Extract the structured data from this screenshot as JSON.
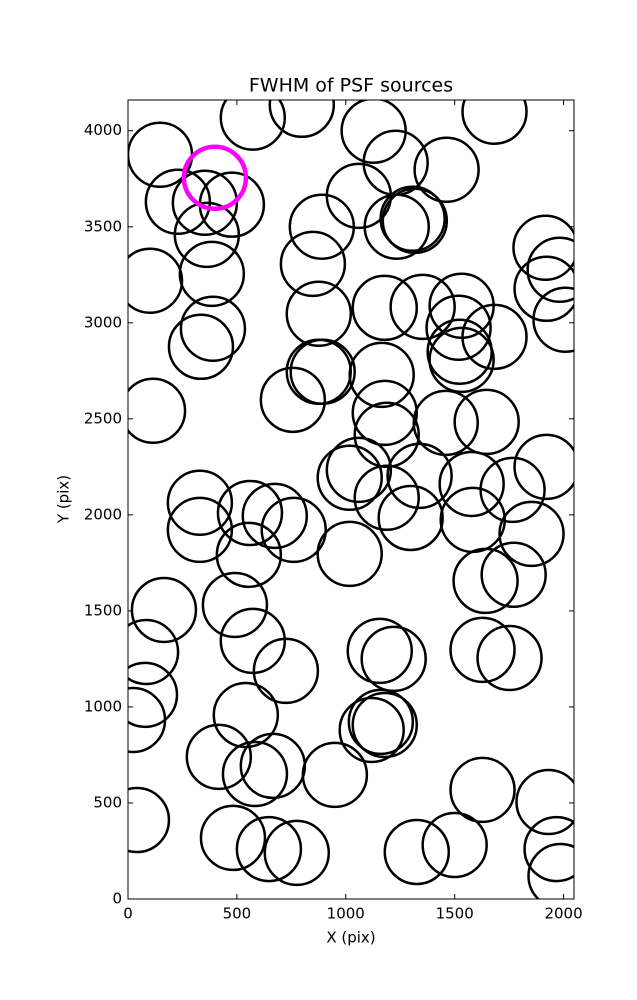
{
  "chart_data": {
    "type": "scatter",
    "title": "FWHM of PSF sources",
    "x_label": "X (pix)",
    "y_label": "Y (pix)",
    "xlim": [
      0,
      2048
    ],
    "ylim": [
      0,
      4160
    ],
    "xticks": [
      0,
      500,
      1000,
      1500,
      2000
    ],
    "yticks": [
      0,
      500,
      1000,
      1500,
      2000,
      2500,
      3000,
      3500,
      4000
    ],
    "color": "#000000",
    "x": [
      147,
      229,
      477,
      353,
      362,
      573,
      798,
      101,
      385,
      390,
      335,
      115,
      890,
      849,
      876,
      894,
      876,
      757,
      1060,
      1128,
      1229,
      1463,
      1683,
      1234,
      1307,
      1317,
      1179,
      1353,
      1532,
      1518,
      1683,
      1532,
      1523,
      1165,
      1179,
      1188,
      1459,
      1647,
      1917,
      1982,
      1922,
      2009,
      1060,
      1018,
      1188,
      1298,
      1339,
      1578,
      1583,
      1766,
      1853,
      1922,
      330,
      330,
      560,
      674,
      761,
      555,
      1018,
      1642,
      1771,
      165,
      491,
      573,
      83,
      725,
      1156,
      1220,
      1628,
      1752,
      78,
      23,
      541,
      417,
      583,
      665,
      950,
      1119,
      1161,
      1179,
      41,
      482,
      647,
      775,
      1326,
      1500,
      1628,
      1931,
      1968,
      1986
    ],
    "values": [
      3875,
      3630,
      3615,
      3625,
      3458,
      4068,
      4135,
      3219,
      3255,
      2969,
      2875,
      2542,
      3500,
      3307,
      3047,
      2745,
      2745,
      2599,
      3661,
      4000,
      3833,
      3797,
      4099,
      3500,
      3542,
      3531,
      3078,
      3083,
      3089,
      2974,
      2927,
      2807,
      2849,
      2729,
      2531,
      2417,
      2479,
      2484,
      3391,
      3276,
      3177,
      3016,
      2234,
      2193,
      2089,
      1984,
      2203,
      2161,
      1974,
      2130,
      1901,
      2250,
      2063,
      1922,
      2010,
      1995,
      1922,
      1792,
      1797,
      1656,
      1688,
      1505,
      1531,
      1344,
      1286,
      1188,
      1292,
      1250,
      1297,
      1255,
      1063,
      932,
      958,
      740,
      651,
      693,
      646,
      880,
      922,
      906,
      411,
      318,
      260,
      240,
      245,
      281,
      568,
      505,
      260,
      120
    ],
    "highlight": {
      "x": [
        399
      ],
      "values": [
        3755
      ],
      "color": "#ff00ff"
    }
  }
}
